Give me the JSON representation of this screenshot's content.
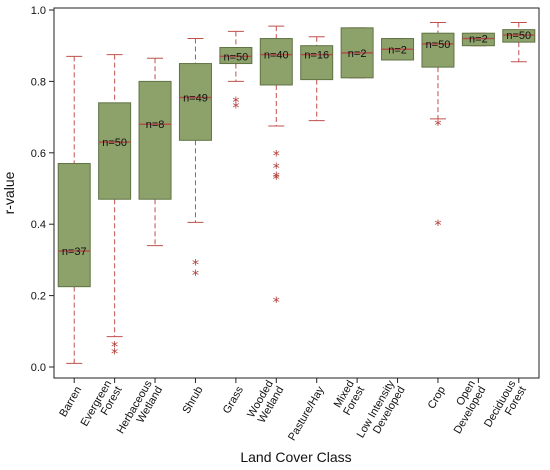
{
  "chart_data": {
    "type": "boxplot",
    "title": "",
    "xlabel": "Land Cover Class",
    "ylabel": "r-value",
    "ylim": [
      0.0,
      1.0
    ],
    "yticks": [
      "0.0",
      "0.2",
      "0.4",
      "0.6",
      "0.8",
      "1.0"
    ],
    "grid": false,
    "colors": {
      "box_fill": "#8ca26a",
      "box_edge": "#5f7344",
      "median": "#b0504a",
      "whisker": "#c0504d",
      "outlier": "#b03a36"
    },
    "boxes": [
      {
        "category": "Barren",
        "n_label": "n=37",
        "whisker_low": 0.01,
        "q1": 0.225,
        "median": 0.325,
        "q3": 0.57,
        "whisker_high": 0.87,
        "outliers": []
      },
      {
        "category": "Evergreen Forest",
        "n_label": "n=50",
        "whisker_low": 0.085,
        "q1": 0.47,
        "median": 0.63,
        "q3": 0.74,
        "whisker_high": 0.875,
        "outliers": [
          0.06,
          0.04
        ]
      },
      {
        "category": "Herbaceous Wetland",
        "n_label": "n=8",
        "whisker_low": 0.34,
        "q1": 0.47,
        "median": 0.68,
        "q3": 0.8,
        "whisker_high": 0.865,
        "outliers": []
      },
      {
        "category": "Shrub",
        "n_label": "n=49",
        "whisker_low": 0.405,
        "q1": 0.635,
        "median": 0.755,
        "q3": 0.85,
        "whisker_high": 0.92,
        "outliers": [
          0.29,
          0.26
        ]
      },
      {
        "category": "Grass",
        "n_label": "n=50",
        "whisker_low": 0.8,
        "q1": 0.85,
        "median": 0.87,
        "q3": 0.895,
        "whisker_high": 0.94,
        "outliers": [
          0.745,
          0.73
        ]
      },
      {
        "category": "Wooded Wetland",
        "n_label": "n=40",
        "whisker_low": 0.675,
        "q1": 0.79,
        "median": 0.875,
        "q3": 0.92,
        "whisker_high": 0.955,
        "outliers": [
          0.595,
          0.56,
          0.535,
          0.53,
          0.185
        ]
      },
      {
        "category": "Pasture/Hay",
        "n_label": "n=16",
        "whisker_low": 0.69,
        "q1": 0.805,
        "median": 0.875,
        "q3": 0.9,
        "whisker_high": 0.925,
        "outliers": []
      },
      {
        "category": "Mixed Forest",
        "n_label": "n=2",
        "whisker_low": 0.81,
        "q1": 0.81,
        "median": 0.88,
        "q3": 0.95,
        "whisker_high": 0.95,
        "outliers": []
      },
      {
        "category": "Low Intensity Developed",
        "n_label": "n=2",
        "whisker_low": 0.86,
        "q1": 0.86,
        "median": 0.89,
        "q3": 0.92,
        "whisker_high": 0.92,
        "outliers": []
      },
      {
        "category": "Crop",
        "n_label": "n=50",
        "whisker_low": 0.695,
        "q1": 0.84,
        "median": 0.905,
        "q3": 0.935,
        "whisker_high": 0.965,
        "outliers": [
          0.68,
          0.4
        ]
      },
      {
        "category": "Open Developed",
        "n_label": "n=2",
        "whisker_low": 0.9,
        "q1": 0.9,
        "median": 0.92,
        "q3": 0.935,
        "whisker_high": 0.935,
        "outliers": []
      },
      {
        "category": "Deciduous Forest",
        "n_label": "n=50",
        "whisker_low": 0.855,
        "q1": 0.91,
        "median": 0.93,
        "q3": 0.945,
        "whisker_high": 0.965,
        "outliers": []
      }
    ]
  }
}
